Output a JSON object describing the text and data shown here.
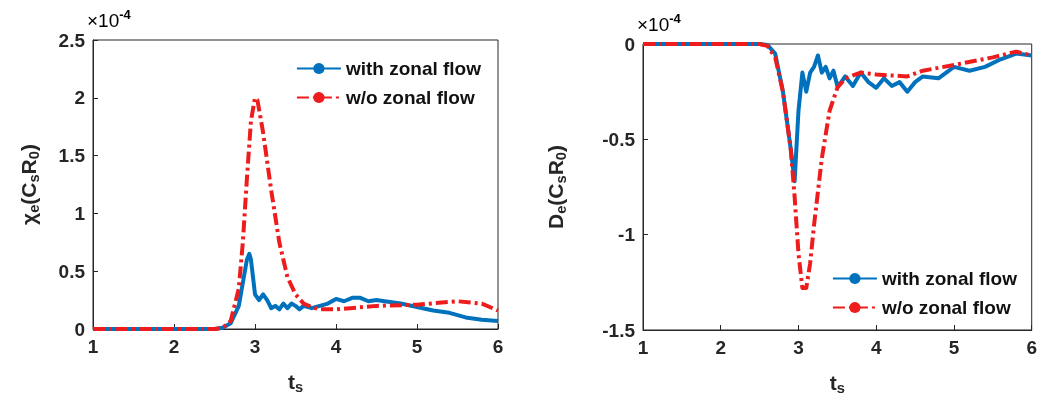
{
  "chart_data": [
    {
      "type": "line",
      "xlabel": "t$_{s}$",
      "ylabel": "χ$_{e}$(C$_{s}$R$_{0}$)",
      "annotations": [
        "×10$^{-4}$"
      ],
      "xlim": [
        1,
        6
      ],
      "xticks": [
        1,
        2,
        3,
        4,
        5,
        6
      ],
      "ylim": [
        0,
        2.5
      ],
      "yticks": [
        0,
        0.5,
        1,
        1.5,
        2,
        2.5
      ],
      "grid": false,
      "legend": "top right",
      "marker": "none",
      "series": [
        {
          "name": "with zonal flow",
          "color": "#0072bd",
          "line_style": "solid",
          "x": [
            1,
            2.5,
            2.6,
            2.7,
            2.8,
            2.85,
            2.9,
            2.93,
            2.95,
            3.0,
            3.05,
            3.1,
            3.15,
            3.2,
            3.25,
            3.3,
            3.35,
            3.4,
            3.45,
            3.5,
            3.55,
            3.6,
            3.7,
            3.8,
            3.9,
            4.0,
            4.1,
            4.2,
            4.3,
            4.4,
            4.5,
            4.6,
            4.8,
            5.0,
            5.2,
            5.4,
            5.6,
            5.8,
            6.0
          ],
          "values": [
            0,
            0,
            0.01,
            0.05,
            0.2,
            0.4,
            0.6,
            0.65,
            0.6,
            0.3,
            0.25,
            0.3,
            0.25,
            0.18,
            0.2,
            0.17,
            0.22,
            0.18,
            0.22,
            0.2,
            0.17,
            0.2,
            0.18,
            0.2,
            0.22,
            0.26,
            0.24,
            0.27,
            0.27,
            0.24,
            0.25,
            0.24,
            0.22,
            0.19,
            0.16,
            0.14,
            0.1,
            0.08,
            0.07
          ]
        },
        {
          "name": "w/o zonal flow",
          "color": "#ee1c1c",
          "line_style": "dashed",
          "x": [
            1,
            2.5,
            2.6,
            2.7,
            2.8,
            2.85,
            2.9,
            2.95,
            3.0,
            3.03,
            3.1,
            3.2,
            3.3,
            3.4,
            3.5,
            3.6,
            3.7,
            3.8,
            4.0,
            4.5,
            5.0,
            5.5,
            5.8,
            6.0
          ],
          "values": [
            0,
            0,
            0.01,
            0.07,
            0.35,
            0.75,
            1.3,
            1.8,
            2.0,
            1.98,
            1.7,
            1.2,
            0.75,
            0.45,
            0.3,
            0.22,
            0.19,
            0.17,
            0.17,
            0.2,
            0.21,
            0.24,
            0.22,
            0.16
          ]
        }
      ]
    },
    {
      "type": "line",
      "xlabel": "t$_{s}$",
      "ylabel": "D$_{e}$(C$_{s}$R$_{0}$)",
      "annotations": [
        "×10$^{-4}$"
      ],
      "xlim": [
        1,
        6
      ],
      "xticks": [
        1,
        2,
        3,
        4,
        5,
        6
      ],
      "ylim": [
        -1.5,
        0
      ],
      "yticks": [
        -1.5,
        -1,
        -0.5,
        0
      ],
      "grid": false,
      "legend": "bottom right",
      "marker": "none",
      "series": [
        {
          "name": "with zonal flow",
          "color": "#0072bd",
          "line_style": "solid",
          "x": [
            1,
            2.5,
            2.6,
            2.7,
            2.8,
            2.85,
            2.9,
            2.95,
            3.0,
            3.05,
            3.1,
            3.15,
            3.2,
            3.25,
            3.3,
            3.35,
            3.4,
            3.45,
            3.5,
            3.55,
            3.6,
            3.7,
            3.8,
            3.9,
            4.0,
            4.1,
            4.2,
            4.3,
            4.4,
            4.5,
            4.6,
            4.8,
            5.0,
            5.2,
            5.4,
            5.6,
            5.8,
            6.0
          ],
          "values": [
            0,
            0,
            -0.005,
            -0.05,
            -0.25,
            -0.4,
            -0.55,
            -0.72,
            -0.35,
            -0.15,
            -0.25,
            -0.15,
            -0.12,
            -0.06,
            -0.15,
            -0.12,
            -0.18,
            -0.14,
            -0.22,
            -0.2,
            -0.17,
            -0.22,
            -0.15,
            -0.2,
            -0.23,
            -0.18,
            -0.22,
            -0.2,
            -0.25,
            -0.2,
            -0.17,
            -0.18,
            -0.12,
            -0.14,
            -0.12,
            -0.08,
            -0.05,
            -0.06
          ]
        },
        {
          "name": "w/o zonal flow",
          "color": "#ee1c1c",
          "line_style": "dashed",
          "x": [
            1,
            2.5,
            2.6,
            2.7,
            2.8,
            2.9,
            2.95,
            3.0,
            3.05,
            3.1,
            3.15,
            3.2,
            3.3,
            3.4,
            3.5,
            3.6,
            3.8,
            4.0,
            4.4,
            4.6,
            5.0,
            5.5,
            5.8,
            6.0
          ],
          "values": [
            0,
            0,
            -0.01,
            -0.07,
            -0.25,
            -0.55,
            -0.8,
            -1.1,
            -1.28,
            -1.28,
            -1.15,
            -0.95,
            -0.6,
            -0.35,
            -0.23,
            -0.18,
            -0.15,
            -0.16,
            -0.17,
            -0.14,
            -0.11,
            -0.07,
            -0.04,
            -0.06
          ]
        }
      ]
    }
  ]
}
